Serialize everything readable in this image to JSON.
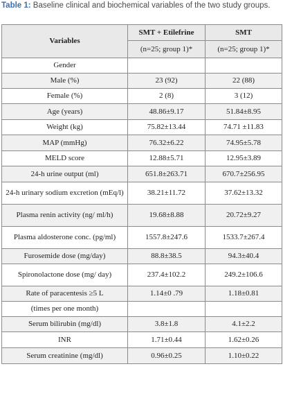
{
  "caption": {
    "label": "Table 1:",
    "text": " Baseline clinical and biochemical variables of the two study groups."
  },
  "table": {
    "header": {
      "variables": "Variables",
      "col1": "SMT + Etilefrine",
      "col2": "SMT",
      "col1_sub": "(n=25; group 1)*",
      "col2_sub": "(n=25; group 1)*"
    },
    "rows": [
      {
        "label": "Gender",
        "a": "",
        "b": ""
      },
      {
        "label": "Male (%)",
        "a": "23 (92)",
        "b": "22 (88)"
      },
      {
        "label": "Female (%)",
        "a": "2 (8)",
        "b": "3 (12)"
      },
      {
        "label": "Age (years)",
        "a": "48.86±9.17",
        "b": "51.84±8.95"
      },
      {
        "label": "Weight (kg)",
        "a": "75.82±13.44",
        "b": "74.71 ±11.83"
      },
      {
        "label": "MAP (mmHg)",
        "a": "76.32±6.22",
        "b": "74.95±5.78"
      },
      {
        "label": "MELD score",
        "a": "12.88±5.71",
        "b": "12.95±3.89"
      },
      {
        "label": "24-h urine output (ml)",
        "a": "651.8±263.71",
        "b": "670.7±256.95"
      },
      {
        "label": "24-h urinary sodium excretion (mEq/l)",
        "a": "38.21±11.72",
        "b": "37.62±13.32"
      },
      {
        "label": "Plasma renin activity (ng/ ml/h)",
        "a": "19.68±8.88",
        "b": "20.72±9.27"
      },
      {
        "label": "Plasma aldosterone conc. (pg/ml)",
        "a": "1557.8±247.6",
        "b": "1533.7±267.4"
      },
      {
        "label": "Furosemide dose (mg/day)",
        "a": "88.8±38.5",
        "b": "94.3±40.4"
      },
      {
        "label": "Spironolactone dose (mg/ day)",
        "a": "237.4±102.2",
        "b": "249.2±106.6"
      },
      {
        "label": "Rate of paracentesis ≥5 L",
        "a": "1.14±0 .79",
        "b": "1.18±0.81"
      },
      {
        "label": "(times per one month)",
        "a": "",
        "b": ""
      },
      {
        "label": "Serum bilirubin (mg/dl)",
        "a": "3.8±1.8",
        "b": "4.1±2.2"
      },
      {
        "label": "INR",
        "a": "1.71±0.44",
        "b": "1.62±0.26"
      },
      {
        "label": "Serum creatinine (mg/dl)",
        "a": "0.96±0.25",
        "b": "1.10±0.22"
      }
    ]
  }
}
